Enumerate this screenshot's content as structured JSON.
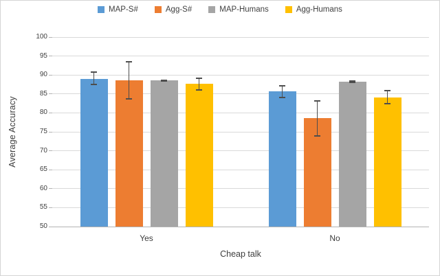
{
  "chart_data": {
    "type": "bar",
    "title": "",
    "xlabel": "Cheap talk",
    "ylabel": "Average Accuracy",
    "categories": [
      "Yes",
      "No"
    ],
    "series": [
      {
        "name": "MAP-S#",
        "color": "#5B9BD5",
        "values": [
          89.0,
          85.6
        ],
        "error_low": [
          87.3,
          83.9
        ],
        "error_high": [
          90.9,
          87.4
        ]
      },
      {
        "name": "Agg-S#",
        "color": "#ED7D31",
        "values": [
          88.5,
          78.6
        ],
        "error_low": [
          83.5,
          73.7
        ],
        "error_high": [
          93.6,
          83.4
        ]
      },
      {
        "name": "MAP-Humans",
        "color": "#A5A5A5",
        "values": [
          88.5,
          88.2
        ],
        "error_low": [
          88.2,
          87.9
        ],
        "error_high": [
          88.8,
          88.5
        ]
      },
      {
        "name": "Agg-Humans",
        "color": "#FFC000",
        "values": [
          87.6,
          84.0
        ],
        "error_low": [
          85.8,
          82.2
        ],
        "error_high": [
          89.3,
          86.0
        ]
      }
    ],
    "ylim": [
      50,
      100
    ],
    "yticks": [
      50,
      55,
      60,
      65,
      70,
      75,
      80,
      85,
      90,
      95,
      100
    ],
    "grid": true,
    "legend_position": "top-center",
    "colors": {
      "gridline": "#d9d9d9",
      "axis_line": "#b3b3b3",
      "error_bar": "#4d4d4d",
      "text": "#404040"
    }
  }
}
